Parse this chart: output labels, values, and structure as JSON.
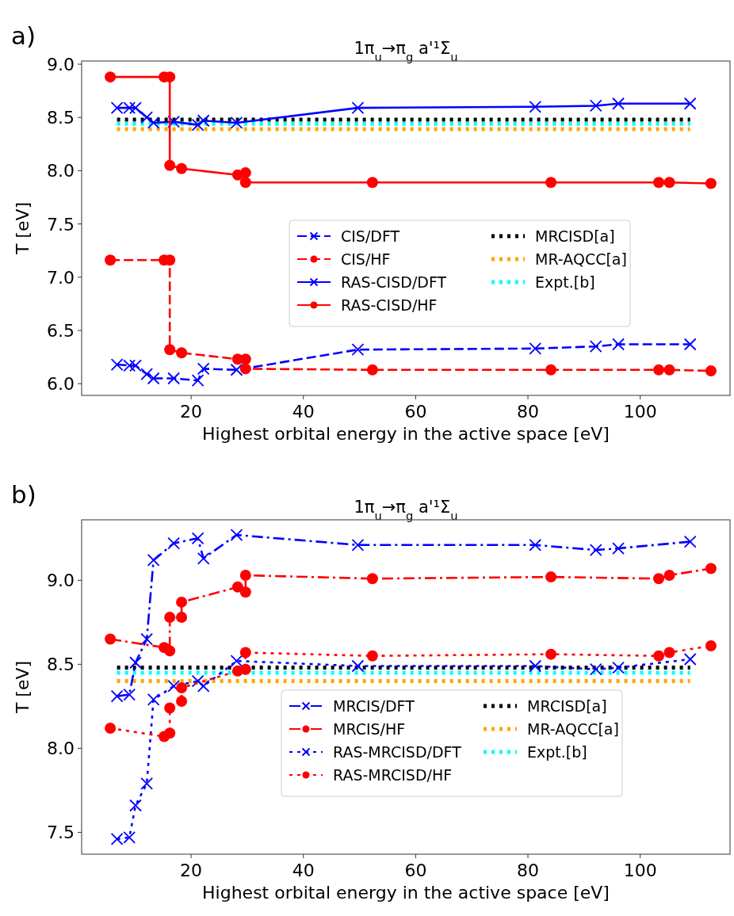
{
  "chart_data": [
    {
      "type": "line",
      "title": "1π$_{u}$→π$_{g}$ a'¹Σ$_{u}$",
      "xlabel": "Highest orbital energy in the active space [eV]",
      "ylabel": "T [eV]",
      "annotations": [
        "a)"
      ],
      "xlim": [
        0.5,
        116
      ],
      "ylim": [
        5.89,
        9.03
      ],
      "xticks": [
        20,
        40,
        60,
        80,
        100
      ],
      "yticks": [
        {
          "value": 6.0,
          "label": "6.0"
        },
        6.5,
        {
          "value": 7.0,
          "label": "7.0"
        },
        7.5,
        {
          "value": 8.0,
          "label": "8.0"
        },
        8.5,
        {
          "value": 9.0,
          "label": "9.0"
        }
      ],
      "grid": false,
      "legend": "center",
      "series": [
        {
          "name": "CIS/DFT",
          "color": "#0000ff",
          "marker": "cross",
          "line_style": "dashed",
          "x": [
            6.8,
            9.0,
            10.1,
            12.1,
            13.3,
            16.9,
            21.2,
            22.2,
            28.1,
            49.7,
            81.3,
            92.1,
            96.1,
            108.9
          ],
          "values": [
            6.18,
            6.17,
            6.17,
            6.09,
            6.05,
            6.05,
            6.03,
            6.14,
            6.13,
            6.32,
            6.33,
            6.35,
            6.37,
            6.37
          ]
        },
        {
          "name": "CIS/HF",
          "color": "#ff0000",
          "marker": "circle",
          "line_style": "dashed",
          "x": [
            5.6,
            15.2,
            16.2,
            16.2,
            18.3,
            28.3,
            29.7,
            29.7,
            52.3,
            84.1,
            103.3,
            105.2,
            112.6
          ],
          "values": [
            7.16,
            7.16,
            7.16,
            6.32,
            6.29,
            6.23,
            6.23,
            6.14,
            6.13,
            6.13,
            6.13,
            6.13,
            6.12
          ]
        },
        {
          "name": "RAS-CISD/DFT",
          "color": "#0000ff",
          "marker": "cross",
          "line_style": "solid",
          "x": [
            6.8,
            9.0,
            10.1,
            12.1,
            13.3,
            16.9,
            21.2,
            22.2,
            28.1,
            49.7,
            81.3,
            92.1,
            96.1,
            108.9
          ],
          "values": [
            8.59,
            8.59,
            8.59,
            8.5,
            8.45,
            8.46,
            8.43,
            8.47,
            8.45,
            8.59,
            8.6,
            8.61,
            8.63,
            8.63
          ]
        },
        {
          "name": "RAS-CISD/HF",
          "color": "#ff0000",
          "marker": "circle",
          "line_style": "solid",
          "x": [
            5.6,
            15.2,
            16.2,
            16.2,
            18.3,
            28.3,
            29.7,
            29.7,
            52.3,
            84.1,
            103.3,
            105.2,
            112.6
          ],
          "values": [
            8.88,
            8.88,
            8.88,
            8.05,
            8.02,
            7.96,
            7.98,
            7.89,
            7.89,
            7.89,
            7.89,
            7.89,
            7.88
          ]
        },
        {
          "name": "MRCISD[a]",
          "color": "#000000",
          "marker": "none",
          "line_style": "dotted",
          "x": [
            6.8,
            108.9
          ],
          "values": [
            8.48,
            8.48
          ]
        },
        {
          "name": "MR-AQCC[a]",
          "color": "#ffa500",
          "marker": "none",
          "line_style": "dotted",
          "x": [
            6.8,
            108.9
          ],
          "values": [
            8.39,
            8.39
          ]
        },
        {
          "name": "Expt.[b]",
          "color": "#00ffff",
          "marker": "none",
          "line_style": "dotted",
          "x": [
            6.8,
            108.9
          ],
          "values": [
            8.44,
            8.44
          ]
        }
      ]
    },
    {
      "type": "line",
      "title": "1π$_{u}$→π$_{g}$ a'¹Σ$_{u}$",
      "xlabel": "Highest orbital energy in the active space [eV]",
      "ylabel": "T [eV]",
      "annotations": [
        "b)"
      ],
      "xlim": [
        0.5,
        116
      ],
      "ylim": [
        7.37,
        9.36
      ],
      "xticks": [
        20,
        40,
        60,
        80,
        100
      ],
      "yticks": [
        7.5,
        {
          "value": 8.0,
          "label": "8.0"
        },
        8.5,
        {
          "value": 9.0,
          "label": "9.0"
        }
      ],
      "grid": false,
      "legend": "bottom",
      "series": [
        {
          "name": "MRCIS/DFT",
          "color": "#0000ff",
          "marker": "cross",
          "line_style": "dashdot",
          "x": [
            6.8,
            9.0,
            10.1,
            12.1,
            13.3,
            16.9,
            21.2,
            22.2,
            28.1,
            49.7,
            81.3,
            92.1,
            96.1,
            108.9
          ],
          "values": [
            8.31,
            8.32,
            8.51,
            8.65,
            9.12,
            9.22,
            9.25,
            9.13,
            9.27,
            9.21,
            9.21,
            9.18,
            9.19,
            9.23
          ]
        },
        {
          "name": "MRCIS/HF",
          "color": "#ff0000",
          "marker": "circle",
          "line_style": "dashdot",
          "x": [
            5.6,
            15.2,
            16.2,
            16.2,
            18.3,
            18.3,
            28.3,
            29.7,
            29.7,
            52.3,
            84.1,
            103.3,
            105.2,
            112.6
          ],
          "values": [
            8.65,
            8.6,
            8.58,
            8.78,
            8.78,
            8.87,
            8.96,
            8.93,
            9.03,
            9.01,
            9.02,
            9.01,
            9.03,
            9.07
          ]
        },
        {
          "name": "RAS-MRCISD/DFT",
          "color": "#0000ff",
          "marker": "cross",
          "line_style": "dotted",
          "x": [
            6.8,
            9.0,
            10.1,
            12.1,
            13.3,
            16.9,
            21.2,
            22.2,
            28.1,
            49.7,
            81.3,
            92.1,
            96.1,
            108.9
          ],
          "values": [
            7.46,
            7.47,
            7.66,
            7.79,
            8.29,
            8.37,
            8.4,
            8.37,
            8.52,
            8.49,
            8.49,
            8.47,
            8.48,
            8.53
          ]
        },
        {
          "name": "RAS-MRCISD/HF",
          "color": "#ff0000",
          "marker": "circle",
          "line_style": "dotted",
          "x": [
            5.6,
            15.2,
            16.2,
            16.2,
            18.3,
            18.3,
            28.3,
            29.7,
            29.7,
            52.3,
            84.1,
            103.3,
            105.2,
            112.6
          ],
          "values": [
            8.12,
            8.07,
            8.09,
            8.24,
            8.28,
            8.36,
            8.46,
            8.47,
            8.57,
            8.55,
            8.56,
            8.55,
            8.57,
            8.61
          ]
        },
        {
          "name": "MRCISD[a]",
          "color": "#000000",
          "marker": "none",
          "line_style": "dotted",
          "x": [
            6.8,
            108.9
          ],
          "values": [
            8.48,
            8.48
          ]
        },
        {
          "name": "MR-AQCC[a]",
          "color": "#ffa500",
          "marker": "none",
          "line_style": "dotted",
          "x": [
            6.8,
            108.9
          ],
          "values": [
            8.4,
            8.4
          ]
        },
        {
          "name": "Expt.[b]",
          "color": "#00ffff",
          "marker": "none",
          "line_style": "dotted",
          "x": [
            6.8,
            108.9
          ],
          "values": [
            8.45,
            8.45
          ]
        }
      ]
    }
  ]
}
